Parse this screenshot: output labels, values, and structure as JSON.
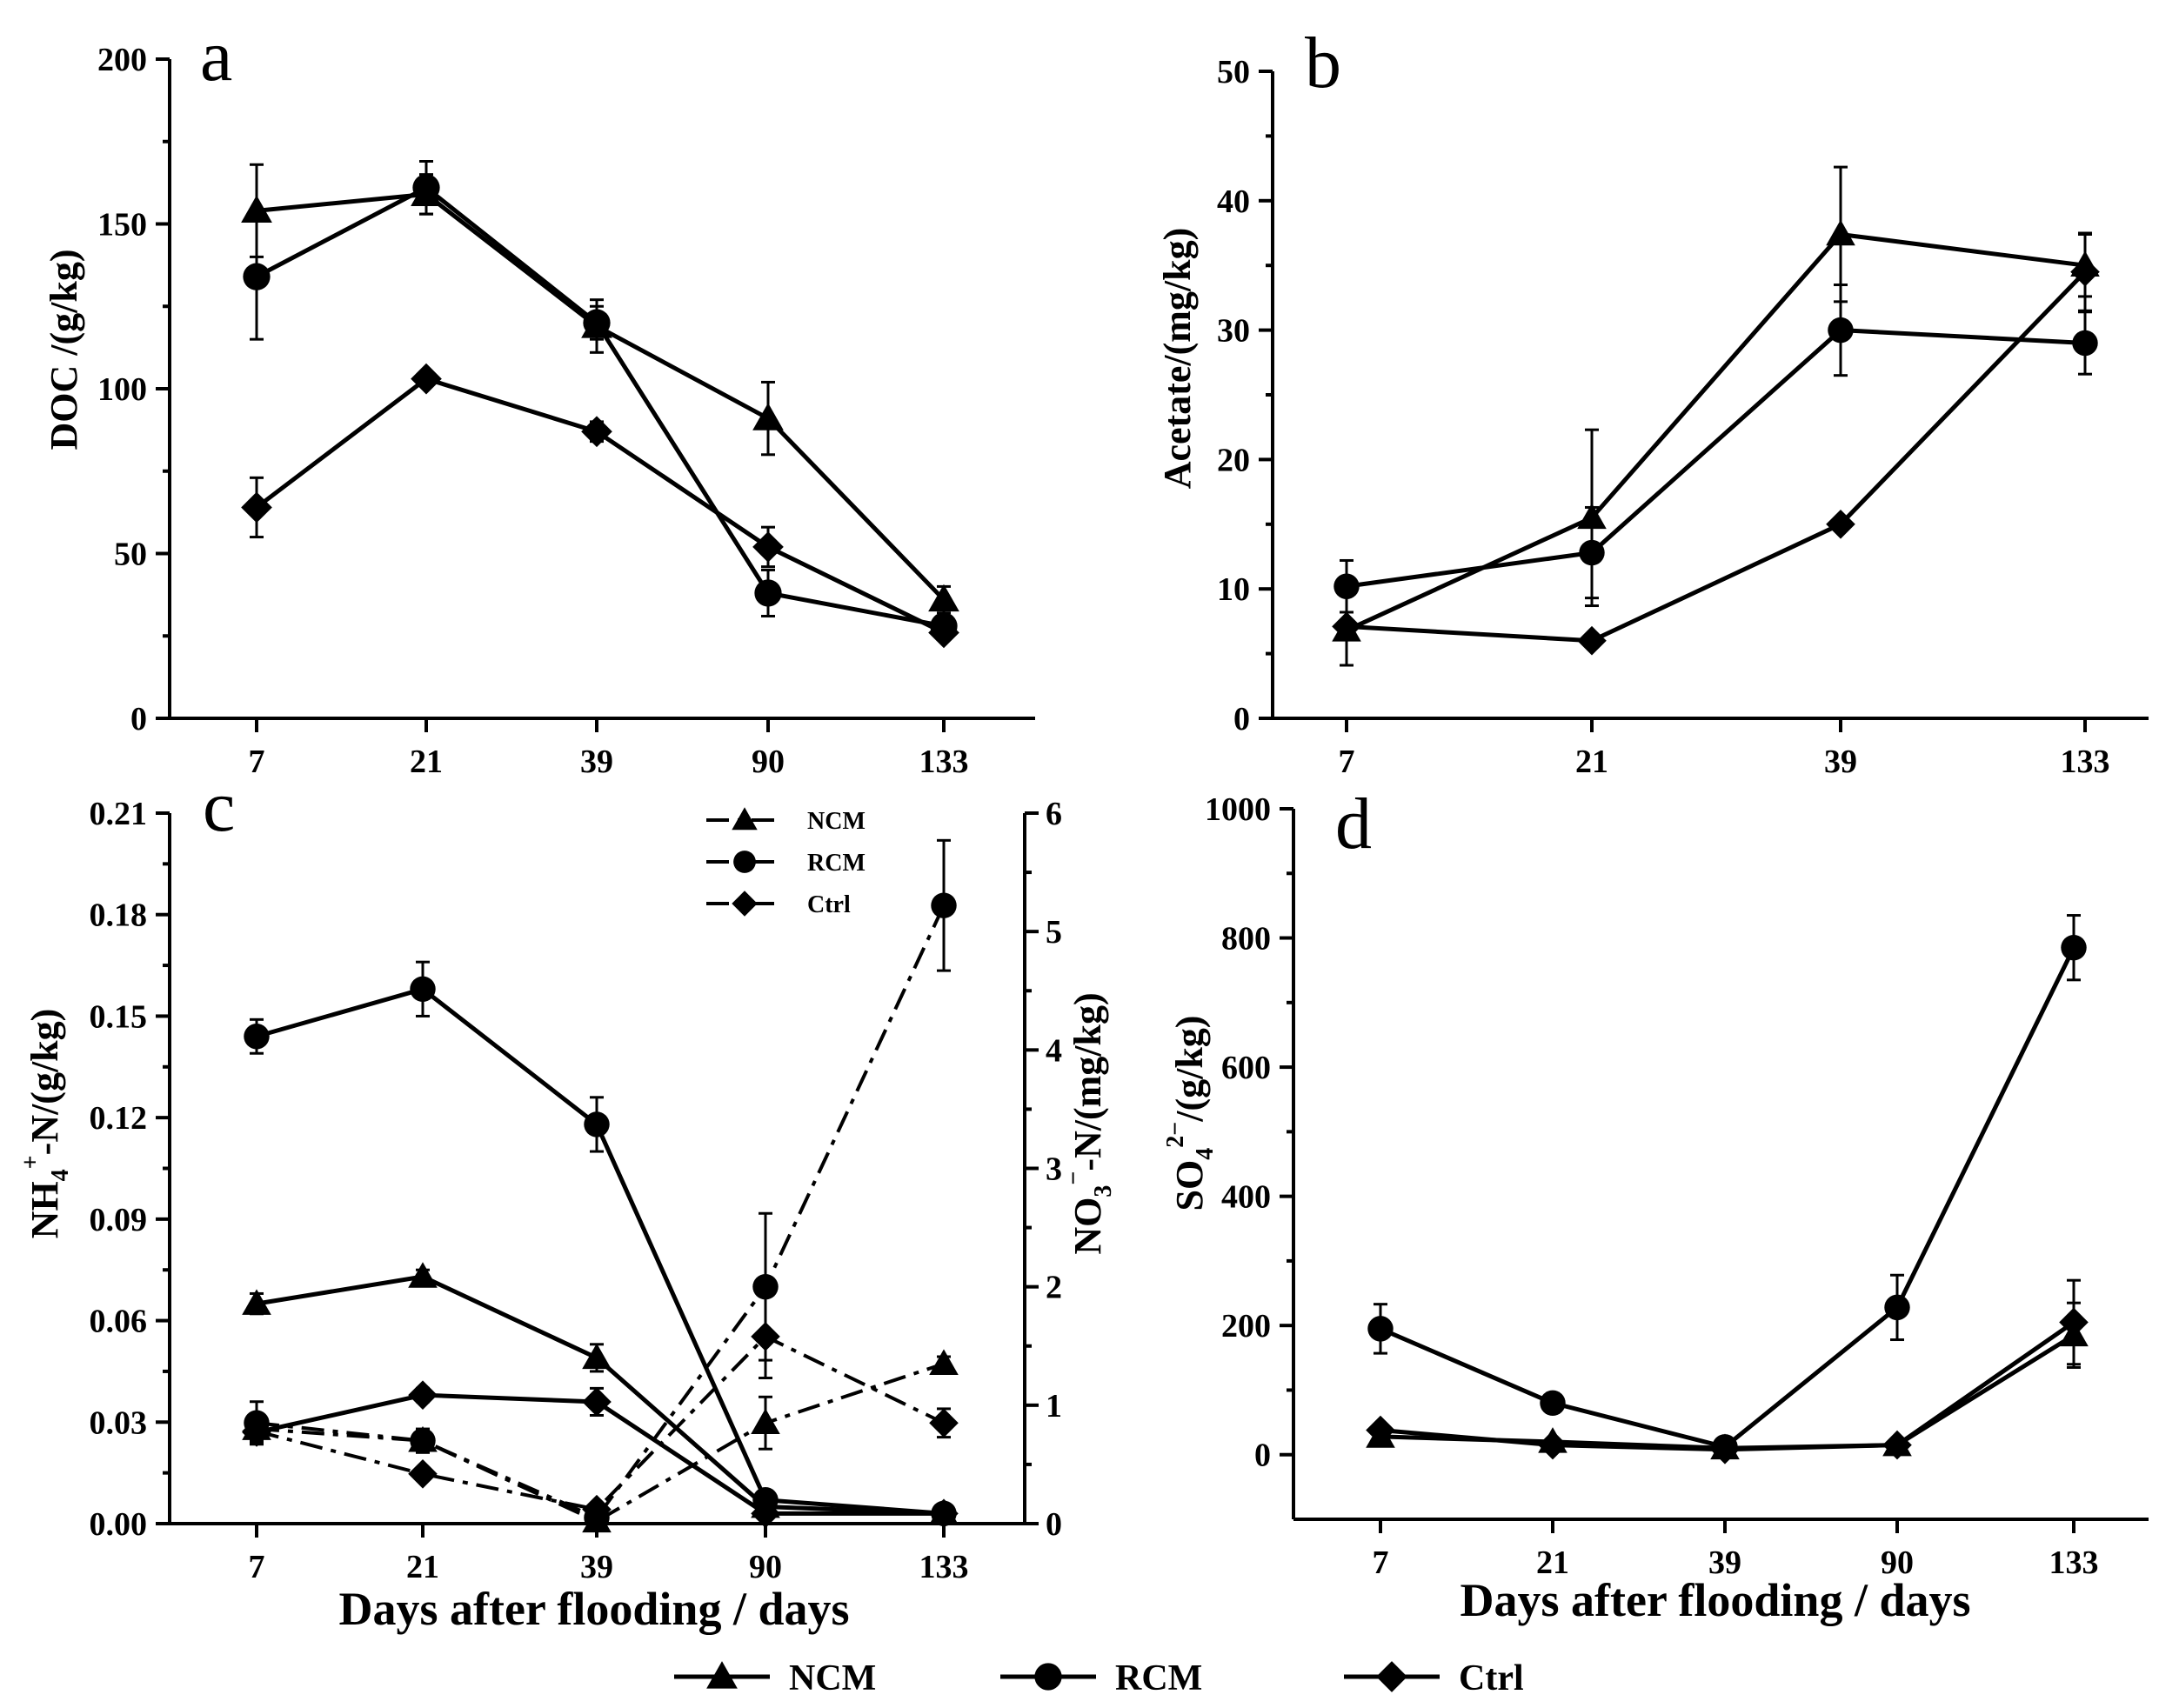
{
  "chart_data": [
    {
      "id": "a",
      "type": "line",
      "panel_label": "a",
      "ylabel": "DOC /(g/kg)",
      "xlabel": "",
      "categories": [
        "7",
        "21",
        "39",
        "90",
        "133"
      ],
      "ylim": [
        0,
        200
      ],
      "yticks": [
        "0",
        "50",
        "100",
        "150",
        "200"
      ],
      "series": [
        {
          "name": "NCM",
          "marker": "triangle",
          "values": [
            154,
            159,
            119,
            91,
            36
          ],
          "errors": [
            14,
            6,
            8,
            11,
            4
          ]
        },
        {
          "name": "RCM",
          "marker": "circle",
          "values": [
            134,
            161,
            120,
            38,
            28
          ],
          "errors": [
            19,
            8,
            5,
            7,
            3
          ]
        },
        {
          "name": "Ctrl",
          "marker": "diamond",
          "values": [
            64,
            103,
            87,
            52,
            26
          ],
          "errors": [
            9,
            2,
            3,
            6,
            2
          ]
        }
      ]
    },
    {
      "id": "b",
      "type": "line",
      "panel_label": "b",
      "ylabel": "Acetate/(mg/kg)",
      "xlabel": "",
      "categories": [
        "7",
        "21",
        "39",
        "133"
      ],
      "ylim": [
        0,
        50
      ],
      "yticks": [
        "0",
        "10",
        "20",
        "30",
        "40",
        "50"
      ],
      "series": [
        {
          "name": "NCM",
          "marker": "triangle",
          "values": [
            6.8,
            15.5,
            37.4,
            35
          ],
          "errors": [
            2.7,
            6.8,
            5.2,
            2.4
          ]
        },
        {
          "name": "RCM",
          "marker": "circle",
          "values": [
            10.2,
            12.8,
            30,
            29
          ],
          "errors": [
            2,
            3.5,
            3.5,
            2.4
          ]
        },
        {
          "name": "Ctrl",
          "marker": "diamond",
          "values": [
            7.1,
            6,
            15,
            34.5
          ],
          "errors": [
            0.5,
            0.3,
            0.3,
            3
          ]
        }
      ]
    },
    {
      "id": "c",
      "type": "line",
      "panel_label": "c",
      "ylabel": "NH4+-N/(g/kg)",
      "y2label": "NO3−-N/(mg/kg)",
      "xlabel": "Days after flooding / days",
      "categories": [
        "7",
        "21",
        "39",
        "90",
        "133"
      ],
      "ylim": [
        0,
        0.21
      ],
      "yticks": [
        "0.00",
        "0.03",
        "0.06",
        "0.09",
        "0.12",
        "0.15",
        "0.18",
        "0.21"
      ],
      "y2lim": [
        0,
        6
      ],
      "y2ticks": [
        "0",
        "1",
        "2",
        "3",
        "4",
        "5",
        "6"
      ],
      "series": [
        {
          "name": "NCM",
          "marker": "triangle",
          "style": "solid",
          "axis": "left",
          "values": [
            0.065,
            0.073,
            0.049,
            0.005,
            0.003
          ],
          "errors": [
            0.003,
            0.002,
            0.004,
            0.001,
            0.0005
          ]
        },
        {
          "name": "RCM",
          "marker": "circle",
          "style": "solid",
          "axis": "left",
          "values": [
            0.144,
            0.158,
            0.118,
            0.007,
            0.003
          ],
          "errors": [
            0.005,
            0.008,
            0.008,
            0.001,
            0.0005
          ]
        },
        {
          "name": "Ctrl",
          "marker": "diamond",
          "style": "solid",
          "axis": "left",
          "values": [
            0.027,
            0.038,
            0.036,
            0.003,
            0.003
          ],
          "errors": [
            0.002,
            0.002,
            0.004,
            0.0005,
            0.0005
          ]
        },
        {
          "name": "NCM",
          "marker": "triangle",
          "style": "dashdot",
          "axis": "right",
          "values": [
            0.8,
            0.7,
            0.02,
            0.85,
            1.35
          ],
          "errors": [
            0.12,
            0.06,
            0.04,
            0.22,
            0.06
          ]
        },
        {
          "name": "RCM",
          "marker": "circle",
          "style": "dashdot",
          "axis": "right",
          "values": [
            0.85,
            0.7,
            0.05,
            2,
            5.22
          ],
          "errors": [
            0.18,
            0.1,
            0.05,
            0.62,
            0.55
          ]
        },
        {
          "name": "Ctrl",
          "marker": "diamond",
          "style": "dashdot",
          "axis": "right",
          "values": [
            0.78,
            0.42,
            0.12,
            1.58,
            0.85
          ],
          "errors": [
            0.08,
            0.05,
            0.04,
            0.35,
            0.12
          ]
        }
      ],
      "inset_legend": [
        "NCM",
        "RCM",
        "Ctrl"
      ]
    },
    {
      "id": "d",
      "type": "line",
      "panel_label": "d",
      "ylabel": "SO42−/(g/kg)",
      "xlabel": "Days after flooding / days",
      "categories": [
        "7",
        "21",
        "39",
        "90",
        "133"
      ],
      "ylim": [
        -100,
        1000
      ],
      "yticks": [
        "0",
        "200",
        "400",
        "600",
        "800",
        "1000"
      ],
      "series": [
        {
          "name": "NCM",
          "marker": "triangle",
          "values": [
            28,
            20,
            10,
            15,
            185
          ],
          "errors": [
            4,
            4,
            3,
            3,
            50
          ]
        },
        {
          "name": "RCM",
          "marker": "circle",
          "values": [
            195,
            80,
            12,
            228,
            785
          ],
          "errors": [
            38,
            15,
            4,
            50,
            50
          ]
        },
        {
          "name": "Ctrl",
          "marker": "diamond",
          "values": [
            38,
            15,
            8,
            15,
            205
          ],
          "errors": [
            5,
            4,
            2,
            3,
            65
          ]
        }
      ]
    }
  ],
  "legend": {
    "items": [
      "NCM",
      "RCM",
      "Ctrl"
    ]
  }
}
